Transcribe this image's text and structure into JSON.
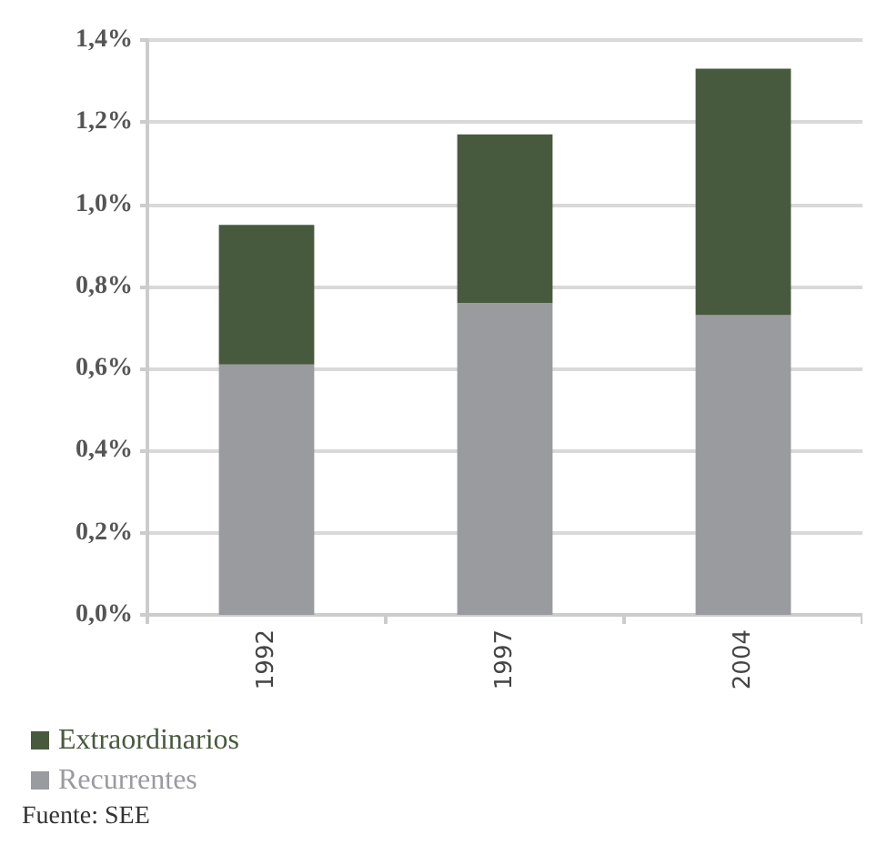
{
  "chart_data": {
    "type": "bar",
    "stacked": true,
    "categories": [
      "1992",
      "1997",
      "2004"
    ],
    "series": [
      {
        "name": "Recurrentes",
        "color": "#9a9b9f",
        "values": [
          0.61,
          0.76,
          0.73
        ]
      },
      {
        "name": "Extraordinarios",
        "color": "#485a3e",
        "values": [
          0.34,
          0.41,
          0.6
        ]
      }
    ],
    "ylim": [
      0,
      1.4
    ],
    "yticks": [
      {
        "value": 0,
        "label": "0,0%"
      },
      {
        "value": 0.2,
        "label": "0,2%"
      },
      {
        "value": 0.4,
        "label": "0,4%"
      },
      {
        "value": 0.6,
        "label": "0,6%"
      },
      {
        "value": 0.8,
        "label": "0,8%"
      },
      {
        "value": 1,
        "label": "1,0%"
      },
      {
        "value": 1.2,
        "label": "1,2%"
      },
      {
        "value": 1.4,
        "label": "1,4%"
      }
    ],
    "grid": "y",
    "legend": "bottom left",
    "annotations": [
      "Fuente: SEE"
    ]
  }
}
